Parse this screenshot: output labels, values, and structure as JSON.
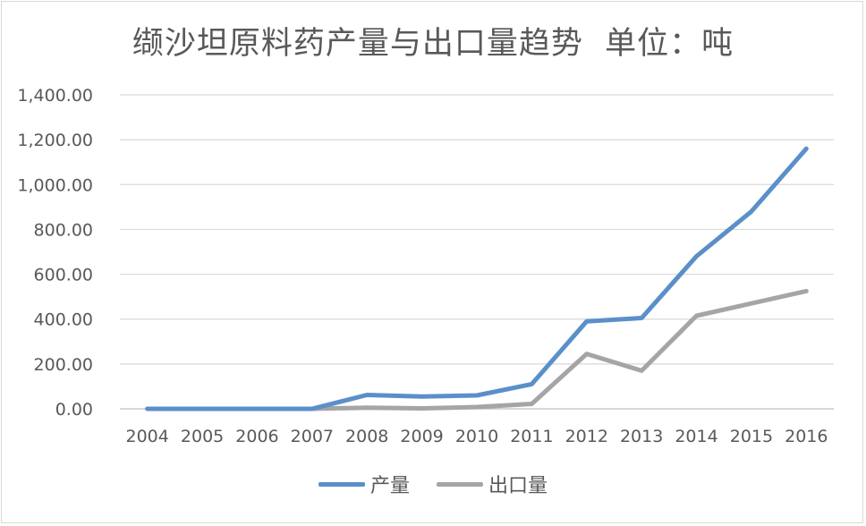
{
  "chart_data": {
    "type": "line",
    "title": "缬沙坦原料药产量与出口量趋势  单位：吨",
    "categories": [
      "2004",
      "2005",
      "2006",
      "2007",
      "2008",
      "2009",
      "2010",
      "2011",
      "2012",
      "2013",
      "2014",
      "2015",
      "2016"
    ],
    "y_ticks": [
      "0.00",
      "200.00",
      "400.00",
      "600.00",
      "800.00",
      "1,000.00",
      "1,200.00",
      "1,400.00"
    ],
    "ylim": [
      0,
      1400
    ],
    "grid": true,
    "legend_position": "bottom",
    "series": [
      {
        "name": "产量",
        "color": "#5b8fc9",
        "values": [
          0,
          0,
          0,
          0,
          62,
          55,
          60,
          110,
          390,
          405,
          680,
          880,
          1160
        ]
      },
      {
        "name": "出口量",
        "color": "#a5a5a5",
        "values": [
          0,
          0,
          0,
          0,
          5,
          2,
          8,
          22,
          245,
          170,
          415,
          470,
          525
        ]
      }
    ]
  }
}
